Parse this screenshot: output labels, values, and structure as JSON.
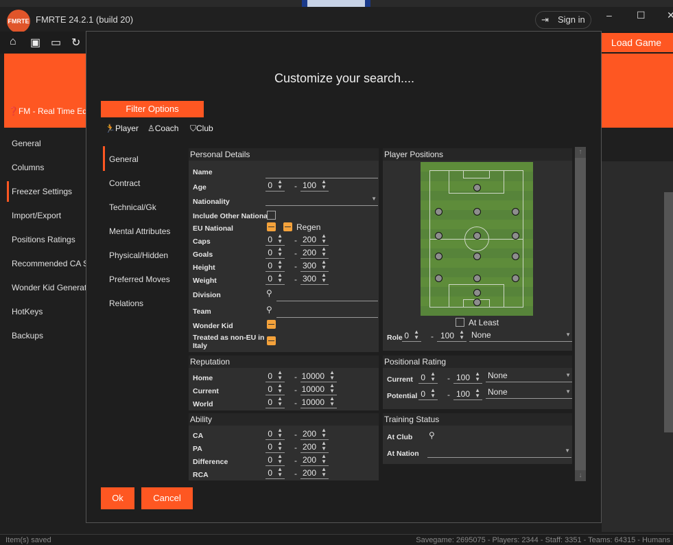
{
  "app": {
    "title": "FMRTE 24.2.1 (build 20)",
    "logo_text": "FMRTE 24",
    "sign_in": "Sign in",
    "load_game": "Load Game",
    "help_link": "FM - Real Time Ed",
    "colors": {
      "accent": "#fe5722",
      "checkbox": "#f4a23b",
      "pitch": "#5e8c3a"
    }
  },
  "toolbar": {
    "icons": [
      "home-icon",
      "save-icon",
      "monitor-icon",
      "refresh-icon",
      "help-icon",
      "player-icon",
      "team-icon",
      "staff-icon",
      "calendar-icon",
      "database-icon",
      "settings-icon"
    ]
  },
  "sidebar": {
    "items": [
      "General",
      "Columns",
      "Freezer Settings",
      "Import/Export",
      "Positions Ratings",
      "Recommended CA S",
      "Wonder Kid Generato",
      "HotKeys",
      "Backups"
    ],
    "active": "Freezer Settings"
  },
  "status": {
    "left": "Item(s) saved",
    "right": "Savegame: 2695075 - Players: 2344 - Staff: 3351 - Teams: 64315 - Humans"
  },
  "dialog": {
    "title": "Customize your search....",
    "filter_options": "Filter Options",
    "tabs": [
      "Player",
      "Coach",
      "Club"
    ],
    "nav": [
      "General",
      "Contract",
      "Technical/Gk",
      "Mental Attributes",
      "Physical/Hidden",
      "Preferred Moves",
      "Relations"
    ],
    "nav_active": "General",
    "personal": {
      "title": "Personal Details",
      "name": "Name",
      "age": {
        "label": "Age",
        "min": "0",
        "max": "100"
      },
      "nationality": "Nationality",
      "include_other": "Include Other Nationa",
      "eu_national": "EU National",
      "regen": "Regen",
      "ranges": [
        {
          "label": "Caps",
          "min": "0",
          "max": "200"
        },
        {
          "label": "Goals",
          "min": "0",
          "max": "200"
        },
        {
          "label": "Height",
          "min": "0",
          "max": "300"
        },
        {
          "label": "Weight",
          "min": "0",
          "max": "300"
        }
      ],
      "division": "Division",
      "team": "Team",
      "wonder_kid": "Wonder Kid",
      "non_eu": "Treated as non-EU in Italy"
    },
    "reputation": {
      "title": "Reputation",
      "rows": [
        {
          "label": "Home",
          "min": "0",
          "max": "10000"
        },
        {
          "label": "Current",
          "min": "0",
          "max": "10000"
        },
        {
          "label": "World",
          "min": "0",
          "max": "10000"
        }
      ]
    },
    "ability": {
      "title": "Ability",
      "rows": [
        {
          "label": "CA",
          "min": "0",
          "max": "200"
        },
        {
          "label": "PA",
          "min": "0",
          "max": "200"
        },
        {
          "label": "Difference",
          "min": "0",
          "max": "200"
        },
        {
          "label": "RCA",
          "min": "0",
          "max": "200"
        }
      ]
    },
    "positions": {
      "title": "Player Positions",
      "at_least": "At Least",
      "role": {
        "label": "Role",
        "min": "0",
        "max": "100",
        "value": "None"
      }
    },
    "positional_rating": {
      "title": "Positional Rating",
      "rows": [
        {
          "label": "Current",
          "min": "0",
          "max": "100",
          "value": "None"
        },
        {
          "label": "Potential",
          "min": "0",
          "max": "100",
          "value": "None"
        }
      ]
    },
    "training": {
      "title": "Training Status",
      "at_club": "At Club",
      "at_nation": "At Nation"
    },
    "ok": "Ok",
    "cancel": "Cancel"
  }
}
